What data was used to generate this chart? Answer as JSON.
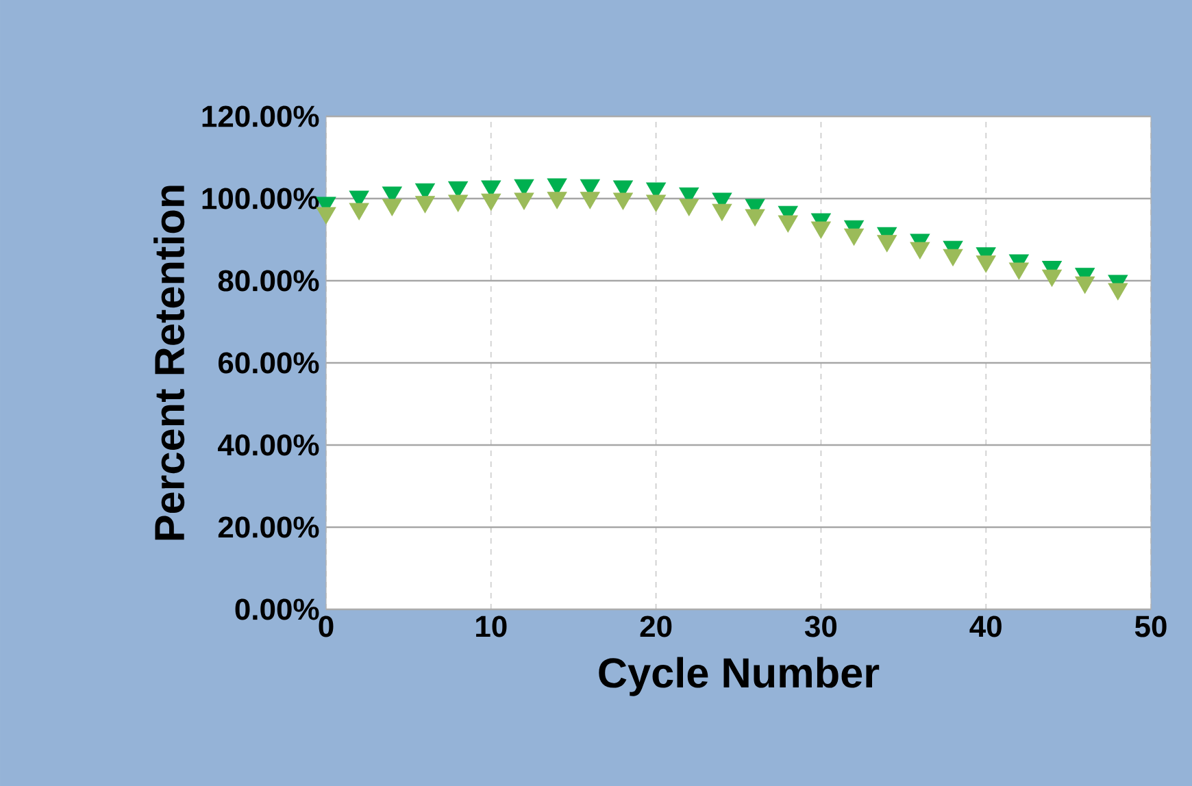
{
  "chart_data": {
    "type": "scatter",
    "xlabel": "Cycle Number",
    "ylabel": "Percent Retention",
    "marker": "triangle",
    "grid": true,
    "xlim": [
      0,
      50
    ],
    "xticks": [
      0,
      10,
      20,
      30,
      40,
      50
    ],
    "ylim": [
      0,
      120
    ],
    "yticks": [
      {
        "value": 0,
        "label": "0.00%"
      },
      {
        "value": 20,
        "label": "20.00%"
      },
      {
        "value": 40,
        "label": "40.00%"
      },
      {
        "value": 60,
        "label": "60.00%"
      },
      {
        "value": 80,
        "label": "80.00%"
      },
      {
        "value": 100,
        "label": "100.00%"
      },
      {
        "value": 120,
        "label": "120.00%"
      }
    ],
    "x": [
      0,
      2,
      4,
      6,
      8,
      10,
      12,
      14,
      16,
      18,
      20,
      22,
      24,
      26,
      28,
      30,
      32,
      34,
      36,
      38,
      40,
      42,
      44,
      46,
      48
    ],
    "series": [
      {
        "color": "#00b050",
        "values": [
          99,
          100.5,
          101.5,
          102.3,
          102.8,
          103,
          103.3,
          103.5,
          103.3,
          103,
          102.5,
          101.3,
          100,
          98.5,
          96.8,
          95,
          93.3,
          91.6,
          90,
          88.3,
          86.7,
          85,
          83.4,
          81.7,
          80
        ]
      },
      {
        "color": "#9bbb59",
        "values": [
          96.5,
          97.5,
          98.5,
          99.2,
          99.5,
          99.8,
          100,
          100.2,
          100.2,
          100,
          99.5,
          98.5,
          97.3,
          96,
          94.5,
          93,
          91.3,
          89.7,
          88,
          86.3,
          84.7,
          83,
          81.3,
          79.6,
          78
        ]
      }
    ]
  }
}
